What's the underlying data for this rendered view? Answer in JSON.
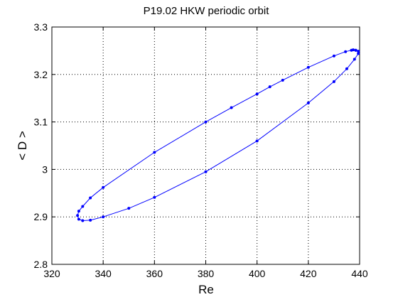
{
  "chart_data": {
    "type": "line",
    "title": "P19.02 HKW periodic orbit",
    "xlabel": "Re",
    "ylabel": "< D >",
    "xlim": [
      320,
      440
    ],
    "ylim": [
      2.8,
      3.3
    ],
    "xticks": [
      320,
      340,
      360,
      380,
      400,
      420,
      440
    ],
    "yticks": [
      2.8,
      2.9,
      3.0,
      3.1,
      3.2,
      3.3
    ],
    "xtick_labels": [
      "320",
      "340",
      "360",
      "380",
      "400",
      "420",
      "440"
    ],
    "ytick_labels": [
      "2.8",
      "2.9",
      "3",
      "3.1",
      "3.2",
      "3.3"
    ],
    "grid": true,
    "grid_style": "dotted",
    "line_color": "#0000ff",
    "marker": "dot",
    "series": [
      {
        "x": [
          438.5,
          437.5,
          436.8,
          434.5,
          430,
          420,
          410,
          405,
          400,
          390,
          380,
          360,
          340,
          335,
          332,
          330.5,
          330,
          330.5,
          332,
          335,
          340,
          350,
          360,
          380,
          400,
          420,
          430,
          435,
          438,
          439.5,
          439.5,
          438.5
        ],
        "y": [
          3.251,
          3.252,
          3.251,
          3.248,
          3.239,
          3.215,
          3.188,
          3.174,
          3.159,
          3.13,
          3.1,
          3.036,
          2.962,
          2.94,
          2.922,
          2.912,
          2.903,
          2.895,
          2.892,
          2.893,
          2.9,
          2.918,
          2.941,
          2.995,
          3.06,
          3.14,
          3.185,
          3.212,
          3.232,
          3.244,
          3.249,
          3.251
        ]
      }
    ]
  }
}
